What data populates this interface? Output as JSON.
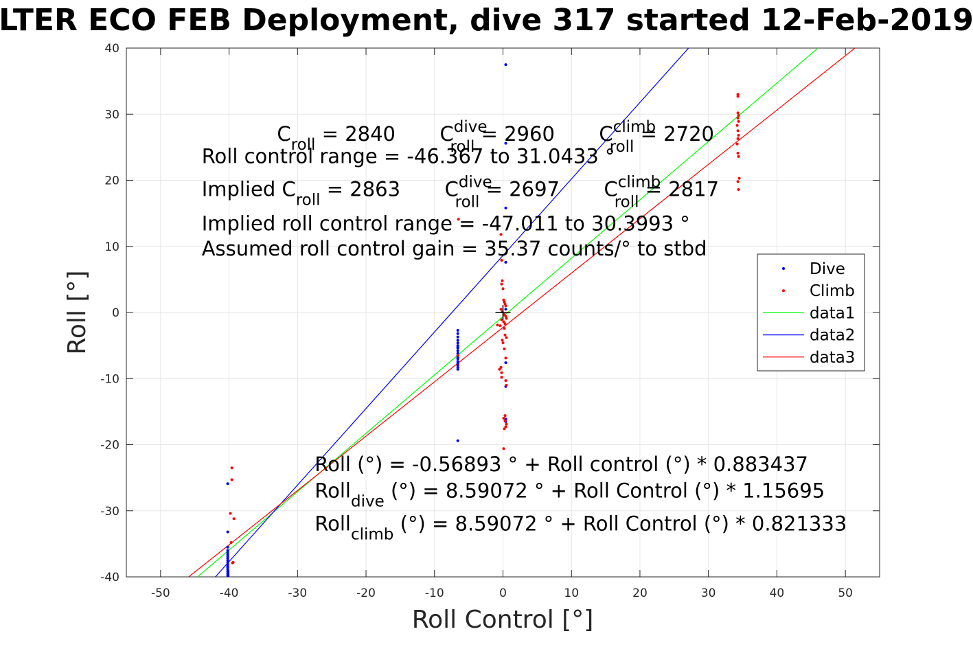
{
  "chart_data": {
    "type": "scatter",
    "title": "LTER ECO FEB Deployment, dive 317 started 12-Feb-2019",
    "xlabel": "Roll Control [°]",
    "ylabel": "Roll [°]",
    "xlim": [
      -55,
      55
    ],
    "ylim": [
      -40,
      40
    ],
    "xticks": [
      -50,
      -40,
      -30,
      -20,
      -10,
      0,
      10,
      20,
      30,
      40,
      50
    ],
    "yticks": [
      -40,
      -30,
      -20,
      -10,
      0,
      10,
      20,
      30,
      40
    ],
    "grid": true,
    "legend_position": "right",
    "legend": [
      "Dive",
      "Climb",
      "data1",
      "data2",
      "data3"
    ],
    "colors": {
      "dive": "#0000ff",
      "climb": "#ff0000",
      "data1": "#00ff00",
      "data2": "#0000ff",
      "data3": "#ff0000",
      "marker": "#000000"
    },
    "series": [
      {
        "name": "Dive",
        "style": "points",
        "x": [
          -40.2,
          -40.2,
          -40.2,
          -40.2,
          -40.2,
          -40.2,
          -40.2,
          -40.2,
          -40.2,
          -40.2,
          -40.2,
          -40.2,
          -40.2,
          -40.2,
          -40.2,
          -40.2,
          -40.2,
          -6.6,
          -6.6,
          -6.6,
          -6.6,
          -6.6,
          -6.6,
          -6.6,
          -6.6,
          -6.6,
          -6.6,
          -6.6,
          -6.6,
          -6.6,
          -6.6,
          -6.6,
          -6.6,
          -6.6,
          -6.6,
          -6.6,
          0.4,
          0.4,
          0.4,
          0.4,
          0.4,
          0.4,
          0.4,
          0.4,
          0.4
        ],
        "y": [
          -25.9,
          -33.2,
          -35.5,
          -36.0,
          -36.3,
          -36.6,
          -36.9,
          -37.2,
          -37.5,
          -37.8,
          -38.1,
          -38.4,
          -38.6,
          -38.9,
          -39.2,
          -39.5,
          -39.8,
          -2.7,
          -3.2,
          -3.7,
          -4.2,
          -4.6,
          -5.0,
          -5.4,
          -5.8,
          -6.2,
          -6.6,
          -7.0,
          -7.4,
          -7.7,
          -8.0,
          -8.3,
          -8.6,
          -5.2,
          -6.8,
          -19.4,
          37.5,
          25.6,
          15.8,
          7.6,
          -7.6,
          -11.2,
          -16.1,
          -16.5,
          0.5
        ]
      },
      {
        "name": "Climb",
        "style": "points",
        "x": [
          -39.6,
          -39.6,
          -39.8,
          -39.3,
          -39.7,
          -39.4,
          -39.5,
          -6.5,
          -6.6,
          34.3,
          34.3,
          34.3,
          34.4,
          34.3,
          34.4,
          34.2,
          34.3,
          34.4,
          34.3,
          34.2,
          34.3,
          34.4,
          34.5,
          34.3,
          34.4,
          -0.3,
          -0.2,
          -0.1,
          -0.2,
          0.0,
          0.1,
          0.2,
          0.3,
          0.4,
          -0.3,
          -0.1,
          0.2,
          0.4,
          0.5,
          -0.2,
          0.1,
          0.3,
          -0.4,
          0.2,
          0.3,
          0.5,
          -0.1,
          0.0,
          0.2,
          0.4,
          -0.3,
          -0.5,
          -0.2,
          0.4,
          0.5,
          0.3,
          0.1,
          0.3,
          0.5,
          0.4,
          0.2,
          -0.8,
          0.1,
          -0.2
        ],
        "y": [
          -23.5,
          -25.3,
          -30.4,
          -31.2,
          -34.8,
          -37.8,
          -37.9,
          14.1,
          -6.5,
          33.0,
          32.7,
          30.2,
          29.8,
          29.4,
          28.9,
          28.3,
          27.5,
          26.8,
          26.3,
          25.5,
          24.1,
          23.6,
          20.3,
          19.8,
          18.6,
          11.8,
          7.9,
          4.8,
          4.3,
          3.6,
          1.9,
          1.6,
          1.3,
          1.0,
          0.5,
          0.1,
          -0.3,
          -0.6,
          -0.9,
          -1.1,
          -1.4,
          -1.7,
          -2.0,
          -2.4,
          -3.4,
          -3.8,
          -4.2,
          -4.6,
          -5.5,
          -6.9,
          -8.3,
          -8.6,
          -9.1,
          -10.3,
          -11.0,
          -15.6,
          -16.0,
          -16.4,
          -16.9,
          -17.3,
          -17.6,
          -1.9,
          -20.6,
          -9.8
        ]
      },
      {
        "name": "data1",
        "style": "line",
        "x": [
          -44.6,
          46.0
        ],
        "y": [
          -40.0,
          40.0
        ]
      },
      {
        "name": "data2",
        "style": "line",
        "x": [
          -42.0,
          27.1
        ],
        "y": [
          -40.0,
          40.0
        ]
      },
      {
        "name": "data3",
        "style": "line",
        "x": [
          -45.9,
          51.4
        ],
        "y": [
          -40.0,
          40.0
        ]
      }
    ],
    "marker_point": {
      "x": 0,
      "y": 0
    },
    "annotations": [
      {
        "anchor": [
          -33.0,
          26.0
        ],
        "parts": [
          [
            "C",
            "roll",
            "",
            " = 2840"
          ],
          [
            "       C",
            "roll",
            "dive",
            " = 2960"
          ],
          [
            "       C",
            "roll",
            "climb",
            " = 2720"
          ]
        ]
      },
      {
        "anchor": [
          -44.0,
          22.6
        ],
        "parts": [
          [
            "Roll control range = -46.367 to 31.0433 °",
            "",
            "",
            ""
          ]
        ]
      },
      {
        "anchor": [
          -44.0,
          17.6
        ],
        "parts": [
          [
            "Implied C",
            "roll",
            "",
            " = 2863"
          ],
          [
            "       C",
            "roll",
            "dive",
            " = 2697"
          ],
          [
            "       C",
            "roll",
            "climb",
            " = 2817"
          ]
        ]
      },
      {
        "anchor": [
          -44.0,
          12.4
        ],
        "parts": [
          [
            "Implied roll control range = -47.011 to 30.3993 °",
            "",
            "",
            ""
          ]
        ]
      },
      {
        "anchor": [
          -44.0,
          8.6
        ],
        "parts": [
          [
            "Assumed roll control gain = 35.37 counts/° to stbd",
            "",
            "",
            ""
          ]
        ]
      },
      {
        "anchor": [
          -27.5,
          -24.0
        ],
        "parts": [
          [
            "Roll (°) = -0.56893 ° + Roll control (°) * 0.883437",
            "",
            "",
            ""
          ]
        ]
      },
      {
        "anchor": [
          -27.5,
          -28.0
        ],
        "parts": [
          [
            "Roll",
            "dive",
            "",
            " (°) = 8.59072 ° + Roll Control (°) * 1.15695"
          ]
        ]
      },
      {
        "anchor": [
          -27.5,
          -33.0
        ],
        "parts": [
          [
            "Roll",
            "climb",
            "",
            " (°) = 8.59072 ° + Roll Control (°) * 0.821333"
          ]
        ]
      }
    ]
  }
}
